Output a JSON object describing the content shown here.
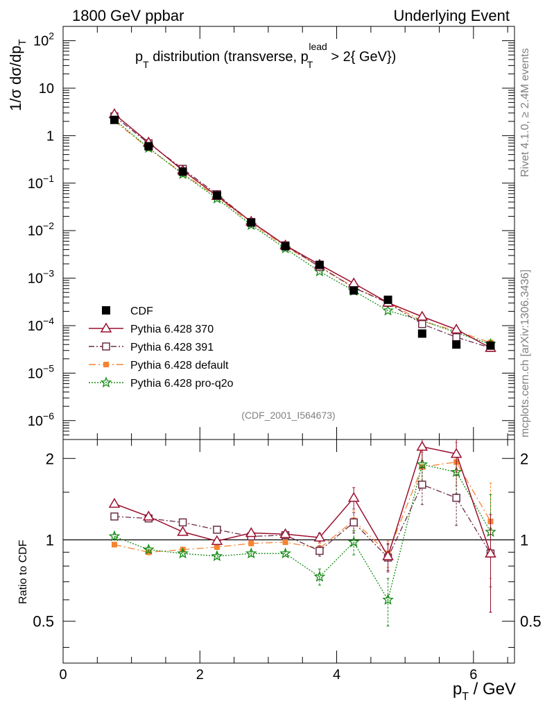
{
  "header": {
    "left": "1800 GeV ppbar",
    "right": "Underlying Event"
  },
  "side_labels": {
    "rivet": "Rivet 4.1.0, ≥ 2.4M events",
    "mcplots": "mcplots.cern.ch [arXiv:1306.3436]"
  },
  "watermark": "(CDF_2001_I564673)",
  "colors": {
    "cdf": "#000000",
    "p370": "#990F2E",
    "p391": "#6B2C47",
    "pdefault": "#F58431",
    "proq2o": "#138A13"
  },
  "chart_data": [
    {
      "type": "line",
      "title": "p_T distribution (transverse, p_T^lead > 2{ GeV})",
      "title_parts": {
        "p": "p",
        "T": "T",
        "mid": " distribution (transverse, ",
        "p2": "p",
        "sub2": "T",
        "sup2": "lead",
        "end": " > 2{ GeV})"
      },
      "ylabel": "1/σ  dσ/dp_T",
      "ylabel_parts": {
        "a": "1/σ  dσ/dp",
        "sub": "T"
      },
      "yscale": "log",
      "ylim": [
        4e-07,
        200
      ],
      "xlim": [
        0,
        6.6
      ],
      "y_ticks": [
        {
          "v": 100,
          "base": "10",
          "exp": "2"
        },
        {
          "v": 10,
          "base": "10",
          "exp": ""
        },
        {
          "v": 1,
          "base": "1",
          "exp": ""
        },
        {
          "v": 0.1,
          "base": "10",
          "exp": "−1"
        },
        {
          "v": 0.01,
          "base": "10",
          "exp": "−2"
        },
        {
          "v": 0.001,
          "base": "10",
          "exp": "−3"
        },
        {
          "v": 0.0001,
          "base": "10",
          "exp": "−4"
        },
        {
          "v": 1e-05,
          "base": "10",
          "exp": "−5"
        },
        {
          "v": 1e-06,
          "base": "10",
          "exp": "−6"
        }
      ],
      "x": [
        0.75,
        1.25,
        1.75,
        2.25,
        2.75,
        3.25,
        3.75,
        4.25,
        4.75,
        5.25,
        5.75,
        6.25
      ],
      "series": [
        {
          "key": "cdf",
          "name": "CDF",
          "marker": "square-filled",
          "dash": "",
          "values": [
            2.15,
            0.6,
            0.175,
            0.055,
            0.0148,
            0.0047,
            0.0019,
            0.00055,
            0.00035,
            6.8e-05,
            4e-05,
            3.8e-05
          ]
        },
        {
          "key": "p370",
          "name": "Pythia 6.428 370",
          "marker": "triangle-open",
          "dash": "",
          "values": [
            2.85,
            0.72,
            0.185,
            0.054,
            0.0155,
            0.0049,
            0.00193,
            0.00078,
            0.000305,
            0.000155,
            8.3e-05,
            3.4e-05
          ]
        },
        {
          "key": "p391",
          "name": "Pythia 6.428 391",
          "marker": "square-open",
          "dash": "8,3,2,3",
          "values": [
            2.55,
            0.69,
            0.2,
            0.0585,
            0.0152,
            0.0049,
            0.00173,
            0.00063,
            0.000302,
            0.000108,
            5.7e-05,
            3.4e-05
          ]
        },
        {
          "key": "pdefault",
          "name": "Pythia 6.428 default",
          "marker": "square-filled",
          "dash": "10,4,2,4",
          "values": [
            2.05,
            0.54,
            0.16,
            0.0515,
            0.0142,
            0.0046,
            0.00177,
            0.00064,
            0.000305,
            0.000125,
            7.7e-05,
            4.4e-05
          ]
        },
        {
          "key": "proq2o",
          "name": "Pythia 6.428 pro-q2o",
          "marker": "star-open",
          "dash": "2,2",
          "values": [
            2.2,
            0.55,
            0.155,
            0.0475,
            0.0131,
            0.0042,
            0.00138,
            0.00054,
            0.000207,
            0.000128,
            7.1e-05,
            4.1e-05
          ]
        }
      ]
    },
    {
      "type": "line",
      "title": "",
      "ylabel": "Ratio to CDF",
      "xlabel": "p_T / GeV",
      "xlabel_parts": {
        "a": "p",
        "sub": "T",
        "b": " / GeV"
      },
      "ylim": [
        0.35,
        2.35
      ],
      "xlim": [
        0,
        6.6
      ],
      "y_ticks": [
        {
          "v": 0.5,
          "label": "0.5"
        },
        {
          "v": 1,
          "label": "1"
        },
        {
          "v": 2,
          "label": "2"
        }
      ],
      "x_ticks": [
        {
          "v": 0,
          "label": "0"
        },
        {
          "v": 2,
          "label": "2"
        },
        {
          "v": 4,
          "label": "4"
        },
        {
          "v": 6,
          "label": "6"
        }
      ],
      "x": [
        0.75,
        1.25,
        1.75,
        2.25,
        2.75,
        3.25,
        3.75,
        4.25,
        4.75,
        5.25,
        5.75,
        6.25
      ],
      "series": [
        {
          "key": "p370",
          "name": "Pythia 6.428 370",
          "values": [
            1.36,
            1.22,
            1.07,
            0.99,
            1.06,
            1.05,
            1.02,
            1.43,
            0.87,
            2.21,
            2.08,
            0.89
          ],
          "errors": [
            0.02,
            0.02,
            0.02,
            0.02,
            0.02,
            0.02,
            0.04,
            0.13,
            0.1,
            0.25,
            0.3,
            0.35
          ]
        },
        {
          "key": "p391",
          "name": "Pythia 6.428 391",
          "values": [
            1.22,
            1.2,
            1.16,
            1.09,
            1.03,
            1.04,
            0.91,
            1.16,
            0.86,
            1.6,
            1.43,
            0.89
          ],
          "errors": [
            0.02,
            0.02,
            0.02,
            0.02,
            0.02,
            0.02,
            0.04,
            0.1,
            0.1,
            0.25,
            0.3,
            0.35
          ]
        },
        {
          "key": "pdefault",
          "name": "Pythia 6.428 default",
          "values": [
            0.96,
            0.9,
            0.92,
            0.94,
            0.97,
            0.98,
            0.93,
            1.18,
            0.89,
            1.86,
            1.94,
            1.17
          ],
          "errors": [
            0.02,
            0.02,
            0.02,
            0.02,
            0.02,
            0.02,
            0.04,
            0.1,
            0.1,
            0.25,
            0.35,
            0.45
          ]
        },
        {
          "key": "proq2o",
          "name": "Pythia 6.428 pro-q2o",
          "values": [
            1.03,
            0.92,
            0.89,
            0.87,
            0.89,
            0.89,
            0.73,
            0.98,
            0.6,
            1.9,
            1.78,
            1.07
          ],
          "errors": [
            0.02,
            0.02,
            0.02,
            0.02,
            0.02,
            0.02,
            0.05,
            0.1,
            0.12,
            0.25,
            0.3,
            0.4
          ]
        }
      ]
    }
  ]
}
